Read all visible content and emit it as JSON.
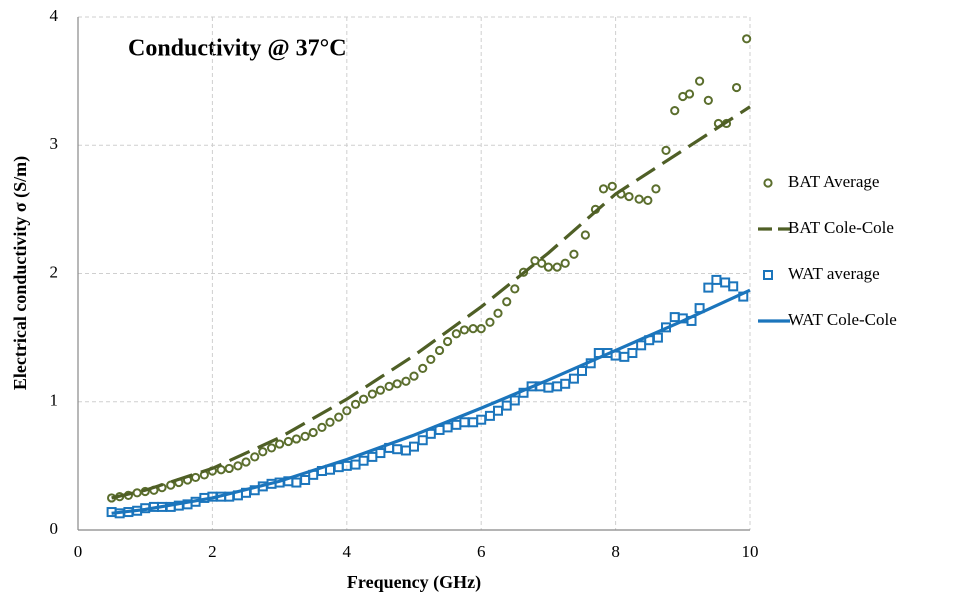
{
  "chart_data": {
    "type": "line",
    "title": "Conductivity @ 37°C",
    "x_label": "Frequency (GHz)",
    "y_label": "Electrical conductivity σ (S/m)",
    "xlim": [
      0,
      10
    ],
    "ylim": [
      0,
      4
    ],
    "xticks": [
      0,
      2,
      4,
      6,
      8,
      10
    ],
    "yticks": [
      0,
      1,
      2,
      3,
      4
    ],
    "grid": true,
    "legend": "right",
    "series": [
      {
        "name": "BAT Average",
        "color": "#5b6e2d",
        "marker": "circle",
        "dash": false,
        "x": [
          0.5,
          0.62,
          0.75,
          0.88,
          1.0,
          1.13,
          1.25,
          1.38,
          1.5,
          1.63,
          1.75,
          1.88,
          2.0,
          2.13,
          2.25,
          2.38,
          2.5,
          2.63,
          2.75,
          2.88,
          3.0,
          3.13,
          3.25,
          3.38,
          3.5,
          3.63,
          3.75,
          3.88,
          4.0,
          4.13,
          4.25,
          4.38,
          4.5,
          4.63,
          4.75,
          4.88,
          5.0,
          5.13,
          5.25,
          5.38,
          5.5,
          5.63,
          5.75,
          5.88,
          6.0,
          6.13,
          6.25,
          6.38,
          6.5,
          6.63,
          6.8,
          6.9,
          7.0,
          7.13,
          7.25,
          7.38,
          7.55,
          7.7,
          7.82,
          7.95,
          8.08,
          8.2,
          8.35,
          8.48,
          8.6,
          8.75,
          8.88,
          9.0,
          9.1,
          9.25,
          9.38,
          9.53,
          9.65,
          9.8,
          9.95
        ],
        "values": [
          0.25,
          0.26,
          0.27,
          0.29,
          0.3,
          0.31,
          0.33,
          0.35,
          0.37,
          0.39,
          0.41,
          0.43,
          0.46,
          0.47,
          0.48,
          0.5,
          0.53,
          0.57,
          0.61,
          0.64,
          0.67,
          0.69,
          0.71,
          0.73,
          0.76,
          0.8,
          0.84,
          0.88,
          0.93,
          0.98,
          1.02,
          1.06,
          1.09,
          1.12,
          1.14,
          1.16,
          1.2,
          1.26,
          1.33,
          1.4,
          1.47,
          1.53,
          1.56,
          1.57,
          1.57,
          1.62,
          1.69,
          1.78,
          1.88,
          2.01,
          2.1,
          2.08,
          2.05,
          2.05,
          2.08,
          2.15,
          2.3,
          2.5,
          2.66,
          2.68,
          2.62,
          2.6,
          2.58,
          2.57,
          2.66,
          2.96,
          3.27,
          3.38,
          3.4,
          3.5,
          3.35,
          3.17,
          3.17,
          3.45,
          3.83
        ]
      },
      {
        "name": "BAT Cole-Cole",
        "color": "#4f5f26",
        "marker": null,
        "dash": true,
        "x": [
          0.5,
          1,
          2,
          3,
          4,
          5,
          6,
          7,
          8,
          9,
          10
        ],
        "values": [
          0.25,
          0.31,
          0.48,
          0.72,
          1.02,
          1.36,
          1.74,
          2.16,
          2.62,
          2.96,
          3.3
        ]
      },
      {
        "name": "WAT average",
        "color": "#1b75bc",
        "marker": "square",
        "dash": false,
        "x": [
          0.5,
          0.62,
          0.75,
          0.88,
          1.0,
          1.13,
          1.25,
          1.38,
          1.5,
          1.63,
          1.75,
          1.88,
          2.0,
          2.13,
          2.25,
          2.38,
          2.5,
          2.63,
          2.75,
          2.88,
          3.0,
          3.13,
          3.25,
          3.38,
          3.5,
          3.63,
          3.75,
          3.88,
          4.0,
          4.13,
          4.25,
          4.38,
          4.5,
          4.63,
          4.75,
          4.88,
          5.0,
          5.13,
          5.25,
          5.38,
          5.5,
          5.63,
          5.75,
          5.88,
          6.0,
          6.13,
          6.25,
          6.38,
          6.5,
          6.63,
          6.75,
          6.88,
          7.0,
          7.13,
          7.25,
          7.38,
          7.5,
          7.63,
          7.75,
          7.88,
          8.0,
          8.13,
          8.25,
          8.38,
          8.5,
          8.63,
          8.75,
          8.88,
          9.0,
          9.13,
          9.25,
          9.38,
          9.5,
          9.63,
          9.75,
          9.9
        ],
        "values": [
          0.14,
          0.13,
          0.14,
          0.15,
          0.17,
          0.18,
          0.18,
          0.18,
          0.19,
          0.2,
          0.22,
          0.25,
          0.26,
          0.26,
          0.26,
          0.27,
          0.29,
          0.31,
          0.34,
          0.36,
          0.37,
          0.38,
          0.37,
          0.39,
          0.43,
          0.46,
          0.47,
          0.49,
          0.5,
          0.51,
          0.54,
          0.57,
          0.6,
          0.64,
          0.63,
          0.62,
          0.65,
          0.7,
          0.75,
          0.78,
          0.8,
          0.82,
          0.84,
          0.84,
          0.86,
          0.89,
          0.93,
          0.97,
          1.01,
          1.07,
          1.12,
          1.12,
          1.11,
          1.12,
          1.14,
          1.18,
          1.24,
          1.3,
          1.38,
          1.38,
          1.36,
          1.35,
          1.38,
          1.44,
          1.48,
          1.5,
          1.58,
          1.66,
          1.65,
          1.63,
          1.73,
          1.89,
          1.95,
          1.93,
          1.9,
          1.82
        ]
      },
      {
        "name": "WAT Cole-Cole",
        "color": "#1b75bc",
        "marker": null,
        "dash": false,
        "x": [
          0.5,
          1,
          2,
          3,
          4,
          5,
          6,
          7,
          8,
          9,
          10
        ],
        "values": [
          0.13,
          0.16,
          0.25,
          0.38,
          0.55,
          0.74,
          0.95,
          1.17,
          1.4,
          1.63,
          1.87
        ]
      }
    ]
  }
}
